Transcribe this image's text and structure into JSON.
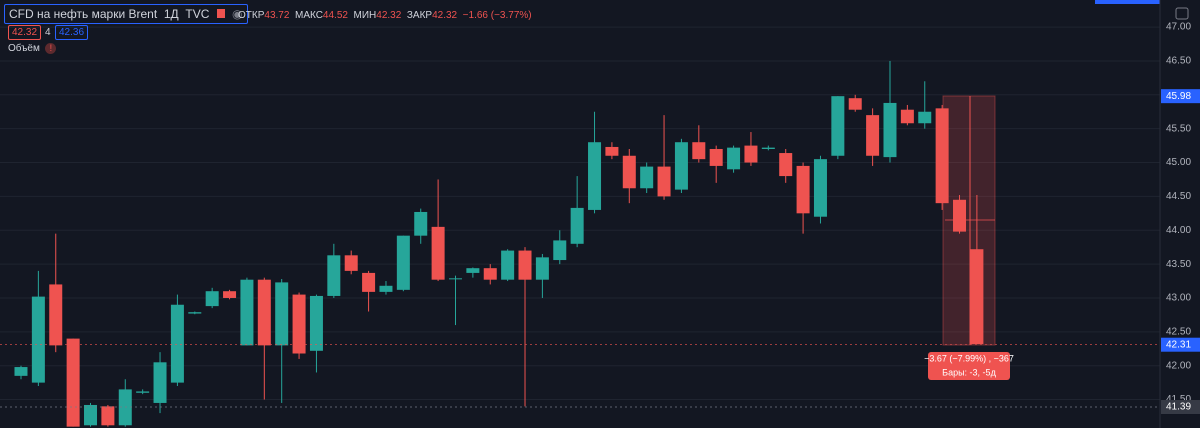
{
  "header": {
    "symbol": "CFD на нефть марки Brent",
    "interval": "1Д",
    "source": "TVC",
    "open_label": "ОТКР",
    "open": "43.72",
    "high_label": "МАКС",
    "high": "44.52",
    "low_label": "МИН",
    "low": "42.32",
    "close_label": "ЗАКР",
    "close": "42.32",
    "change": "−1.66 (−3.77%)",
    "sell": "42.32",
    "spread": "4",
    "buy": "42.36",
    "volume": "Объём"
  },
  "measure": {
    "change": "−3.67 (−7.99%) , −367",
    "bars": "Бары: -3, -5д"
  },
  "chart_data": {
    "type": "candlestick",
    "up_color": "#26a69a",
    "down_color": "#ef5350",
    "grid": true,
    "ylim": [
      41.08,
      47.4
    ],
    "yticks": [
      {
        "value": 41.5,
        "label": "41.50"
      },
      {
        "value": 42,
        "label": "42.00"
      },
      {
        "value": 42.5,
        "label": "42.50"
      },
      {
        "value": 43,
        "label": "43.00"
      },
      {
        "value": 43.5,
        "label": "43.50"
      },
      {
        "value": 44,
        "label": "44.00"
      },
      {
        "value": 44.5,
        "label": "44.50"
      },
      {
        "value": 45,
        "label": "45.00"
      },
      {
        "value": 45.5,
        "label": "45.50"
      },
      {
        "value": 46,
        "label": "46.00"
      },
      {
        "value": 46.5,
        "label": "46.50"
      },
      {
        "value": 47,
        "label": "47.00"
      }
    ],
    "open": [
      41.85,
      41.75,
      43.2,
      42.4,
      41.12,
      41.4,
      41.12,
      41.6,
      41.45,
      41.75,
      42.77,
      42.88,
      43.1,
      42.3,
      43.27,
      42.3,
      43.05,
      42.22,
      43.03,
      43.63,
      43.37,
      43.09,
      43.12,
      43.92,
      44.05,
      43.28,
      43.37,
      43.44,
      43.27,
      43.7,
      43.27,
      43.56,
      43.8,
      44.3,
      45.23,
      45.1,
      44.62,
      44.94,
      44.6,
      45.3,
      45.2,
      44.9,
      45.25,
      45.2,
      45.14,
      44.95,
      44.2,
      45.1,
      45.95,
      45.7,
      45.08,
      45.78,
      45.58,
      45.8,
      44.45,
      43.72
    ],
    "high": [
      42.0,
      43.4,
      43.95,
      42.4,
      41.45,
      41.42,
      41.8,
      41.65,
      42.2,
      43.05,
      42.8,
      43.15,
      43.12,
      43.3,
      43.3,
      43.28,
      43.08,
      43.05,
      43.8,
      43.7,
      43.4,
      43.25,
      43.92,
      44.32,
      44.75,
      43.33,
      43.45,
      43.5,
      43.72,
      43.75,
      43.65,
      44.0,
      44.8,
      45.75,
      45.3,
      45.2,
      45.0,
      45.7,
      45.35,
      45.55,
      45.25,
      45.25,
      45.45,
      45.25,
      45.2,
      45.0,
      45.1,
      45.98,
      46.0,
      45.8,
      46.5,
      45.85,
      46.2,
      45.85,
      44.52,
      44.52
    ],
    "low": [
      41.8,
      41.7,
      42.2,
      41.1,
      41.1,
      41.1,
      41.1,
      41.58,
      41.3,
      41.7,
      42.76,
      42.85,
      42.98,
      42.3,
      41.5,
      41.45,
      42.1,
      41.9,
      43.0,
      43.35,
      42.8,
      43.05,
      43.1,
      43.8,
      43.25,
      42.6,
      43.3,
      43.2,
      43.25,
      41.4,
      43.0,
      43.5,
      43.75,
      44.25,
      45.05,
      44.4,
      44.55,
      44.45,
      44.55,
      45.0,
      44.7,
      44.85,
      44.95,
      45.18,
      44.7,
      43.95,
      44.1,
      45.05,
      45.75,
      44.95,
      45.0,
      45.55,
      45.5,
      44.3,
      43.95,
      42.32
    ],
    "close": [
      41.98,
      43.02,
      42.3,
      41.1,
      41.42,
      41.12,
      41.65,
      41.62,
      42.05,
      42.9,
      42.79,
      43.1,
      43.0,
      43.27,
      42.3,
      43.23,
      42.18,
      43.03,
      43.63,
      43.4,
      43.09,
      43.18,
      43.92,
      44.27,
      43.27,
      43.29,
      43.44,
      43.27,
      43.7,
      43.27,
      43.6,
      43.85,
      44.33,
      45.3,
      45.1,
      44.62,
      44.94,
      44.5,
      45.3,
      45.05,
      44.95,
      45.22,
      45.0,
      45.22,
      44.8,
      44.25,
      45.05,
      45.98,
      45.78,
      45.1,
      45.88,
      45.58,
      45.75,
      44.4,
      43.98,
      42.32
    ],
    "price_labels": [
      45.98,
      42.31,
      41.39
    ],
    "price_label_colors": [
      "#2962ff",
      "#2962ff",
      "#363a45"
    ]
  }
}
